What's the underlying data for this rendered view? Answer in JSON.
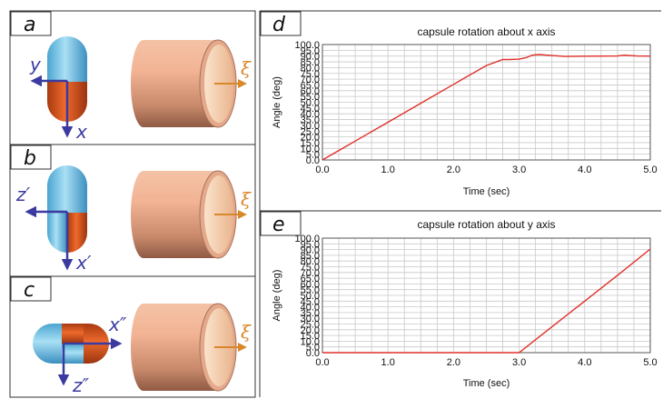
{
  "panels": [
    {
      "letter": "a",
      "h_axis": "y",
      "v_axis": "x",
      "tube_axis": "ξ"
    },
    {
      "letter": "b",
      "h_axis": "z′",
      "v_axis": "x′",
      "tube_axis": "ξ"
    },
    {
      "letter": "c",
      "h_axis": "x″",
      "v_axis": "z″",
      "tube_axis": "ξ"
    }
  ],
  "colors": {
    "cap_top": "#7cc7e8",
    "cap_bottom": "#d8531e",
    "axis_arrow": "#3a3aa0",
    "xi_arrow": "#d8882a",
    "tube": "#e8a888",
    "series": "#e0302a"
  },
  "chart_data": [
    {
      "panel": "d",
      "type": "line",
      "title": "capsule rotation about x axis",
      "xlabel": "Time (sec)",
      "ylabel": "Angle (deg)",
      "xlim": [
        0,
        5
      ],
      "ylim": [
        0,
        100
      ],
      "xticks": [
        "0.0",
        "1.0",
        "2.0",
        "3.0",
        "4.0",
        "5.0"
      ],
      "yticks": [
        "0.0",
        "5.0",
        "10.0",
        "15.0",
        "20.0",
        "25.0",
        "30.0",
        "35.0",
        "40.0",
        "45.0",
        "50.0",
        "55.0",
        "60.0",
        "65.0",
        "70.0",
        "75.0",
        "80.0",
        "85.0",
        "90.0",
        "95.0",
        "100.0"
      ],
      "grid": true,
      "x": [
        0,
        0.5,
        1.0,
        1.5,
        2.0,
        2.5,
        2.75,
        2.85,
        3.0,
        3.1,
        3.2,
        3.3,
        3.5,
        3.7,
        4.0,
        4.5,
        4.6,
        4.8,
        5.0
      ],
      "y": [
        0,
        16.4,
        32.7,
        49.1,
        65.5,
        81.8,
        87,
        87,
        87.3,
        88.5,
        90.8,
        91.3,
        90.5,
        89.7,
        89.9,
        90.1,
        90.8,
        90.1,
        90.0
      ]
    },
    {
      "panel": "e",
      "type": "line",
      "title": "capsule rotation about y axis",
      "xlabel": "Time (sec)",
      "ylabel": "Angle (deg)",
      "xlim": [
        0,
        5
      ],
      "ylim": [
        0,
        100
      ],
      "xticks": [
        "0.0",
        "1.0",
        "2.0",
        "3.0",
        "4.0",
        "5.0"
      ],
      "yticks": [
        "0.0",
        "5.0",
        "10.0",
        "15.0",
        "20.0",
        "25.0",
        "30.0",
        "35.0",
        "40.0",
        "45.0",
        "50.0",
        "55.0",
        "60.0",
        "65.0",
        "70.0",
        "75.0",
        "80.0",
        "85.0",
        "90.0",
        "95.0",
        "100.0"
      ],
      "grid": true,
      "x": [
        0,
        1.0,
        2.0,
        3.0,
        3.5,
        4.0,
        4.5,
        5.0
      ],
      "y": [
        0,
        0,
        0,
        0,
        22.5,
        45.0,
        67.5,
        90.5
      ]
    }
  ]
}
